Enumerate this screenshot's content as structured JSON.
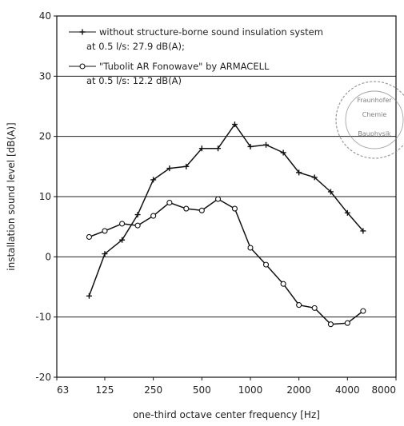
{
  "chart_data": {
    "type": "line",
    "xlabel": "one-third octave center frequency [Hz]",
    "ylabel": "installation sound level [dB(A)]",
    "x_scale": "log",
    "x_ticks": [
      63,
      125,
      250,
      500,
      1000,
      2000,
      4000,
      8000
    ],
    "x_tick_labels": [
      "63",
      "125",
      "250",
      "500",
      "1000",
      "2000",
      "4000",
      "8000"
    ],
    "y_ticks": [
      -20,
      -10,
      0,
      10,
      20,
      30,
      40
    ],
    "y_tick_labels": [
      "-20",
      "-10",
      "0",
      "10",
      "20",
      "30",
      "40"
    ],
    "xlim": [
      63,
      8000
    ],
    "ylim": [
      -20,
      40
    ],
    "grid": true,
    "legend_position": "top-left",
    "x": [
      100,
      125,
      160,
      200,
      250,
      315,
      400,
      500,
      630,
      800,
      1000,
      1250,
      1600,
      2000,
      2500,
      3150,
      4000,
      5000
    ],
    "series": [
      {
        "name": "without structure-borne sound insulation system",
        "name_line2": "at 0.5 l/s: 27.9 dB(A);",
        "marker": "+",
        "line_style": "solid",
        "values": [
          -6.5,
          0.5,
          2.8,
          7.0,
          12.8,
          14.7,
          15.0,
          18.0,
          18.0,
          22.0,
          18.3,
          18.6,
          17.3,
          14.0,
          13.2,
          10.8,
          7.3,
          4.3
        ]
      },
      {
        "name": "\"Tubolit AR Fonowave\" by ARMACELL",
        "name_line2": "at 0.5 l/s: 12.2 dB(A)",
        "marker": "o",
        "line_style": "solid",
        "values": [
          3.3,
          4.3,
          5.5,
          5.2,
          6.8,
          9.0,
          8.0,
          7.7,
          9.6,
          8.0,
          1.5,
          -1.3,
          -4.5,
          -8.0,
          -8.5,
          -11.2,
          -11.0,
          -9.0
        ]
      }
    ]
  },
  "stamp": {
    "lines": [
      "Fraunhofer",
      "Chemie",
      "Bauphysik"
    ]
  }
}
